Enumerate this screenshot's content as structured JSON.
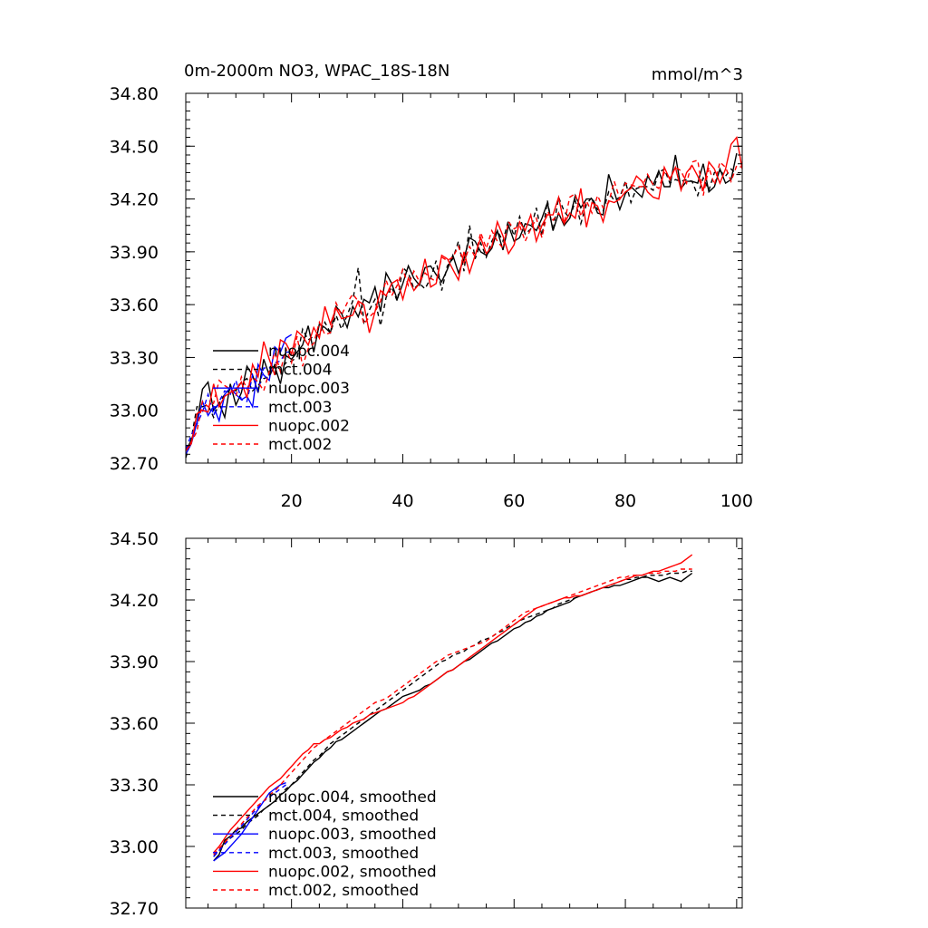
{
  "chart_data": [
    {
      "type": "line",
      "title": "0m-2000m NO3, WPAC_18S-18N",
      "units_label": "mmol/m^3",
      "xlim": [
        1,
        101
      ],
      "ylim": [
        32.7,
        34.8
      ],
      "xticks": [
        20,
        40,
        60,
        80,
        100
      ],
      "xtick_labels": [
        "20",
        "40",
        "60",
        "80",
        "100"
      ],
      "yticks": [
        32.7,
        33.0,
        33.3,
        33.6,
        33.9,
        34.2,
        34.5,
        34.8
      ],
      "ytick_labels": [
        "32.70",
        "33.00",
        "33.30",
        "33.60",
        "33.90",
        "34.20",
        "34.50",
        "34.80"
      ],
      "legend_position": "lower-left",
      "series": [
        {
          "name": "nuopc.004",
          "color": "#000000",
          "dash": "solid",
          "x_start": 1,
          "values": [
            32.77,
            32.83,
            32.93,
            33.12,
            33.16,
            33.0,
            33.04,
            32.96,
            33.15,
            33.03,
            33.1,
            33.25,
            33.2,
            33.1,
            33.29,
            33.2,
            33.25,
            33.15,
            33.31,
            33.29,
            33.33,
            33.37,
            33.48,
            33.33,
            33.49,
            33.47,
            33.44,
            33.59,
            33.55,
            33.47,
            33.59,
            33.53,
            33.63,
            33.61,
            33.7,
            33.56,
            33.78,
            33.72,
            33.63,
            33.72,
            33.82,
            33.75,
            33.71,
            33.81,
            33.82,
            33.77,
            33.73,
            33.8,
            33.88,
            33.78,
            33.86,
            33.98,
            33.96,
            33.9,
            33.88,
            33.92,
            34.02,
            33.91,
            34.05,
            33.96,
            33.98,
            34.06,
            34.05,
            34.02,
            34.09,
            34.18,
            34.02,
            34.12,
            34.05,
            34.09,
            34.22,
            34.15,
            34.2,
            34.2,
            34.12,
            34.11,
            34.34,
            34.24,
            34.14,
            34.23,
            34.27,
            34.24,
            34.21,
            34.33,
            34.28,
            34.36,
            34.27,
            34.27,
            34.45,
            34.26,
            34.3,
            34.3,
            34.29,
            34.4,
            34.24,
            34.27,
            34.37,
            34.29,
            34.31,
            34.46
          ]
        },
        {
          "name": "mct.004",
          "color": "#000000",
          "dash": "dashed",
          "x_start": 1,
          "values": [
            32.73,
            32.84,
            33.02,
            33.02,
            33.03,
            32.96,
            33.04,
            33.09,
            33.12,
            33.11,
            33.16,
            33.18,
            33.11,
            33.14,
            33.18,
            33.19,
            33.26,
            33.23,
            33.27,
            33.28,
            33.3,
            33.46,
            33.4,
            33.42,
            33.43,
            33.5,
            33.44,
            33.54,
            33.46,
            33.54,
            33.62,
            33.81,
            33.5,
            33.57,
            33.63,
            33.48,
            33.64,
            33.7,
            33.62,
            33.81,
            33.78,
            33.69,
            33.72,
            33.69,
            33.75,
            33.85,
            33.68,
            33.82,
            33.86,
            33.96,
            33.79,
            34.05,
            33.86,
            33.95,
            33.87,
            33.96,
            34.02,
            33.96,
            34.08,
            33.99,
            34.1,
            34.0,
            34.03,
            34.15,
            33.99,
            34.19,
            34.02,
            34.21,
            34.13,
            34.09,
            34.19,
            34.06,
            34.17,
            34.21,
            34.14,
            34.13,
            34.24,
            34.19,
            34.21,
            34.3,
            34.18,
            34.26,
            34.27,
            34.27,
            34.25,
            34.35,
            34.37,
            34.29,
            34.31,
            34.3,
            34.31,
            34.3,
            34.22,
            34.32,
            34.25,
            34.35,
            34.36,
            34.33,
            34.37,
            34.34,
            34.34
          ]
        },
        {
          "name": "nuopc.003",
          "color": "#0000ff",
          "dash": "solid",
          "x_start": 1,
          "values": [
            32.75,
            32.81,
            32.93,
            33.05,
            32.97,
            33.02,
            32.94,
            33.09,
            33.13,
            33.09,
            33.06,
            33.08,
            33.02,
            33.26,
            33.2,
            33.17,
            33.36,
            33.33,
            33.41,
            33.43
          ]
        },
        {
          "name": "mct.003",
          "color": "#0000ff",
          "dash": "dashed",
          "x_start": 1,
          "values": [
            32.78,
            32.86,
            32.92,
            32.99,
            33.09,
            32.97,
            33.05,
            33.11,
            33.09,
            33.17,
            33.06,
            33.05,
            33.2,
            33.11,
            33.24,
            33.24,
            33.27,
            33.28,
            33.33,
            33.33
          ]
        },
        {
          "name": "nuopc.002",
          "color": "#ff0000",
          "dash": "solid",
          "x_start": 1,
          "values": [
            32.77,
            32.81,
            32.98,
            33.0,
            32.99,
            33.15,
            33.02,
            33.08,
            33.1,
            33.12,
            33.16,
            33.07,
            33.26,
            33.19,
            33.39,
            33.29,
            33.2,
            33.4,
            33.38,
            33.32,
            33.45,
            33.42,
            33.37,
            33.47,
            33.41,
            33.59,
            33.49,
            33.58,
            33.52,
            33.53,
            33.54,
            33.62,
            33.6,
            33.44,
            33.56,
            33.68,
            33.65,
            33.72,
            33.74,
            33.63,
            33.75,
            33.68,
            33.72,
            33.86,
            33.7,
            33.72,
            33.88,
            33.86,
            33.8,
            33.74,
            33.9,
            33.78,
            33.88,
            33.98,
            33.89,
            33.93,
            34.07,
            33.99,
            33.89,
            33.94,
            34.07,
            34.02,
            34.11,
            33.96,
            34.05,
            34.11,
            34.11,
            34.21,
            34.06,
            34.12,
            34.09,
            34.26,
            34.04,
            34.18,
            34.16,
            34.07,
            34.19,
            34.18,
            34.2,
            34.24,
            34.26,
            34.33,
            34.3,
            34.24,
            34.21,
            34.2,
            34.38,
            34.31,
            34.38,
            34.25,
            34.35,
            34.39,
            34.33,
            34.25,
            34.41,
            34.37,
            34.29,
            34.37,
            34.51,
            34.55,
            34.37
          ]
        },
        {
          "name": "mct.002",
          "color": "#ff0000",
          "dash": "dashed",
          "x_start": 1,
          "values": [
            32.77,
            32.82,
            32.88,
            33.05,
            33.02,
            33.04,
            33.17,
            33.14,
            33.12,
            33.08,
            33.19,
            33.12,
            33.19,
            33.16,
            33.11,
            33.22,
            33.33,
            33.22,
            33.35,
            33.27,
            33.42,
            33.25,
            33.35,
            33.38,
            33.5,
            33.43,
            33.44,
            33.61,
            33.54,
            33.61,
            33.66,
            33.62,
            33.49,
            33.53,
            33.56,
            33.62,
            33.74,
            33.65,
            33.71,
            33.8,
            33.71,
            33.79,
            33.73,
            33.78,
            33.75,
            33.73,
            33.87,
            33.85,
            33.87,
            33.93,
            33.84,
            33.93,
            33.87,
            34.01,
            33.92,
            34.02,
            33.96,
            33.92,
            34.07,
            34.03,
            34.05,
            33.96,
            34.03,
            34.09,
            33.98,
            34.13,
            34.08,
            34.12,
            34.06,
            34.21,
            34.23,
            34.1,
            34.19,
            34.12,
            34.22,
            34.15,
            34.18,
            34.3,
            34.2,
            34.29,
            34.28,
            34.27,
            34.27,
            34.34,
            34.28,
            34.26,
            34.35,
            34.32,
            34.38,
            34.36,
            34.29,
            34.41,
            34.42,
            34.22,
            34.38,
            34.28,
            34.41,
            34.38,
            34.3,
            34.39,
            34.38
          ]
        }
      ]
    },
    {
      "type": "line",
      "xlim": [
        1,
        101
      ],
      "ylim": [
        32.7,
        34.5
      ],
      "xtick_marks": [
        20,
        40,
        60,
        80,
        100
      ],
      "yticks": [
        32.7,
        33.0,
        33.3,
        33.6,
        33.9,
        34.2,
        34.5
      ],
      "ytick_labels": [
        "32.70",
        "33.00",
        "33.30",
        "33.60",
        "33.90",
        "34.20",
        "34.50"
      ],
      "legend_position": "lower-left",
      "series": [
        {
          "name": "nuopc.004, smoothed",
          "color": "#000000",
          "dash": "solid",
          "x_start": 6,
          "values": [
            32.93,
            32.96,
            33.03,
            33.05,
            33.08,
            33.09,
            33.12,
            33.14,
            33.16,
            33.18,
            33.2,
            33.22,
            33.25,
            33.27,
            33.3,
            33.32,
            33.35,
            33.38,
            33.41,
            33.43,
            33.46,
            33.48,
            33.51,
            33.52,
            33.54,
            33.56,
            33.58,
            33.6,
            33.62,
            33.64,
            33.66,
            33.67,
            33.69,
            33.71,
            33.73,
            33.74,
            33.75,
            33.76,
            33.78,
            33.79,
            33.81,
            33.83,
            33.85,
            33.86,
            33.88,
            33.9,
            33.91,
            33.93,
            33.95,
            33.97,
            33.99,
            34.0,
            34.02,
            34.04,
            34.06,
            34.07,
            34.09,
            34.1,
            34.12,
            34.13,
            34.15,
            34.16,
            34.17,
            34.18,
            34.19,
            34.21,
            34.22,
            34.23,
            34.24,
            34.25,
            34.26,
            34.26,
            34.27,
            34.27,
            34.28,
            34.29,
            34.3,
            34.31,
            34.31,
            34.3,
            34.29,
            34.3,
            34.31,
            34.3,
            34.29,
            34.31,
            34.33
          ]
        },
        {
          "name": "mct.004, smoothed",
          "color": "#000000",
          "dash": "dashed",
          "x_start": 6,
          "values": [
            32.95,
            32.98,
            33.02,
            33.04,
            33.06,
            33.08,
            33.11,
            33.13,
            33.15,
            33.18,
            33.2,
            33.22,
            33.25,
            33.28,
            33.3,
            33.33,
            33.36,
            33.39,
            33.42,
            33.44,
            33.47,
            33.5,
            33.52,
            33.54,
            33.56,
            33.58,
            33.6,
            33.62,
            33.64,
            33.66,
            33.68,
            33.7,
            33.72,
            33.74,
            33.76,
            33.78,
            33.8,
            33.82,
            33.84,
            33.86,
            33.88,
            33.9,
            33.91,
            33.93,
            33.94,
            33.95,
            33.97,
            33.98,
            34.0,
            34.01,
            34.02,
            34.04,
            34.05,
            34.07,
            34.08,
            34.1,
            34.11,
            34.12,
            34.13,
            34.14,
            34.15,
            34.16,
            34.18,
            34.19,
            34.2,
            34.21,
            34.22,
            34.23,
            34.24,
            34.25,
            34.26,
            34.27,
            34.28,
            34.29,
            34.3,
            34.3,
            34.31,
            34.31,
            34.32,
            34.32,
            34.32,
            34.32,
            34.33,
            34.33,
            34.33,
            34.34,
            34.34
          ]
        },
        {
          "name": "nuopc.003, smoothed",
          "color": "#0000ff",
          "dash": "solid",
          "x_start": 6,
          "values": [
            32.93,
            32.95,
            32.97,
            33.0,
            33.03,
            33.06,
            33.1,
            33.14,
            33.18,
            33.22,
            33.26,
            33.28,
            33.3,
            33.31
          ]
        },
        {
          "name": "mct.003, smoothed",
          "color": "#0000ff",
          "dash": "dashed",
          "x_start": 6,
          "values": [
            32.95,
            32.98,
            33.01,
            33.04,
            33.07,
            33.1,
            33.13,
            33.16,
            33.19,
            33.22,
            33.24,
            33.26,
            33.28,
            33.3
          ]
        },
        {
          "name": "nuopc.002, smoothed",
          "color": "#ff0000",
          "dash": "solid",
          "x_start": 6,
          "values": [
            32.97,
            33.0,
            33.04,
            33.08,
            33.11,
            33.14,
            33.17,
            33.2,
            33.23,
            33.26,
            33.29,
            33.31,
            33.33,
            33.36,
            33.39,
            33.42,
            33.45,
            33.47,
            33.5,
            33.5,
            33.52,
            33.53,
            33.55,
            33.57,
            33.58,
            33.6,
            33.61,
            33.62,
            33.64,
            33.65,
            33.66,
            33.67,
            33.68,
            33.69,
            33.7,
            33.72,
            33.73,
            33.75,
            33.77,
            33.79,
            33.81,
            33.83,
            33.85,
            33.86,
            33.88,
            33.9,
            33.92,
            33.94,
            33.96,
            33.98,
            34.0,
            34.02,
            34.04,
            34.06,
            34.08,
            34.1,
            34.12,
            34.14,
            34.16,
            34.17,
            34.18,
            34.19,
            34.2,
            34.21,
            34.21,
            34.22,
            34.22,
            34.23,
            34.24,
            34.25,
            34.26,
            34.27,
            34.28,
            34.29,
            34.3,
            34.31,
            34.32,
            34.32,
            34.33,
            34.34,
            34.34,
            34.35,
            34.36,
            34.37,
            34.38,
            34.4,
            34.42
          ]
        },
        {
          "name": "mct.002, smoothed",
          "color": "#ff0000",
          "dash": "dashed",
          "x_start": 6,
          "values": [
            32.96,
            32.99,
            33.02,
            33.05,
            33.08,
            33.11,
            33.14,
            33.17,
            33.2,
            33.22,
            33.25,
            33.27,
            33.3,
            33.33,
            33.36,
            33.39,
            33.42,
            33.45,
            33.48,
            33.5,
            33.52,
            33.54,
            33.56,
            33.58,
            33.6,
            33.62,
            33.64,
            33.66,
            33.68,
            33.7,
            33.71,
            33.72,
            33.74,
            33.76,
            33.78,
            33.8,
            33.82,
            33.84,
            33.86,
            33.88,
            33.9,
            33.91,
            33.93,
            33.94,
            33.95,
            33.96,
            33.97,
            33.98,
            33.99,
            34.0,
            34.02,
            34.04,
            34.06,
            34.08,
            34.1,
            34.12,
            34.14,
            34.15,
            34.16,
            34.17,
            34.18,
            34.19,
            34.2,
            34.21,
            34.22,
            34.23,
            34.24,
            34.25,
            34.26,
            34.27,
            34.28,
            34.29,
            34.3,
            34.31,
            34.31,
            34.32,
            34.32,
            34.32,
            34.33,
            34.33,
            34.33,
            34.34,
            34.34,
            34.34,
            34.35,
            34.35,
            34.35
          ]
        }
      ]
    }
  ]
}
